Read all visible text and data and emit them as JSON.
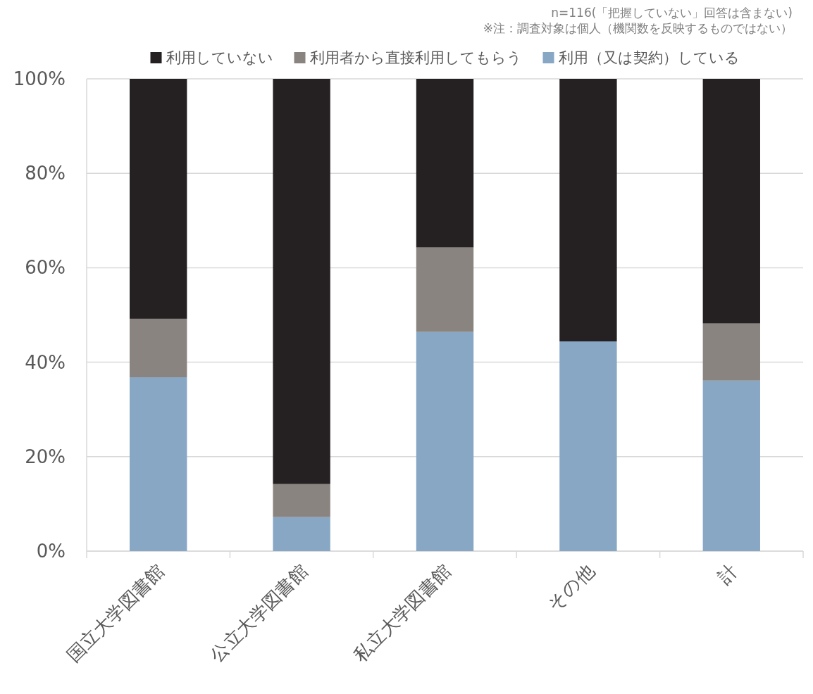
{
  "chart_data": {
    "type": "bar",
    "stacked": true,
    "annotations": [
      "n=116(「把握していない」回答は含まない)",
      "※注：調査対象は個人（機関数を反映するものではない）"
    ],
    "categories": [
      "国立大学図書館",
      "公立大学図書館",
      "私立大学図書館",
      "その他",
      "計"
    ],
    "series": [
      {
        "name": "利用（又は契約）している",
        "color": "#87a7c5",
        "values": [
          36.8,
          7.2,
          46.4,
          44.4,
          36.1
        ]
      },
      {
        "name": "利用者から直接利用してもらう",
        "color": "#8a8480",
        "values": [
          12.4,
          7.0,
          17.9,
          0,
          12.1
        ]
      },
      {
        "name": "利用していない",
        "color": "#252122",
        "values": [
          50.8,
          85.8,
          35.7,
          55.6,
          51.8
        ]
      }
    ],
    "ylim": [
      0,
      100
    ],
    "yticks": [
      {
        "value": 0,
        "label": "0%"
      },
      {
        "value": 20,
        "label": "20%"
      },
      {
        "value": 40,
        "label": "40%"
      },
      {
        "value": 60,
        "label": "60%"
      },
      {
        "value": 80,
        "label": "80%"
      },
      {
        "value": 100,
        "label": "100%"
      }
    ],
    "grid": "y",
    "legend": "top"
  }
}
